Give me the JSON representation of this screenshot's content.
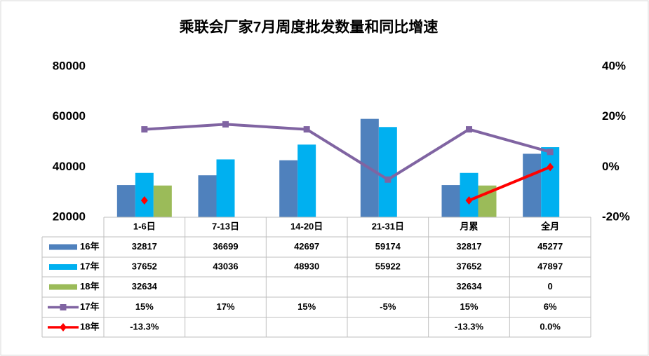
{
  "chart_data": {
    "type": "bar",
    "title": "乘联会厂家7月周度批发数量和同比增速",
    "categories": [
      "1-6日",
      "7-13日",
      "14-20日",
      "21-31日",
      "月累",
      "全月"
    ],
    "series": [
      {
        "name": "16年",
        "type": "bar",
        "color": "#4f81bd",
        "values": [
          32817,
          36699,
          42697,
          59174,
          32817,
          45277
        ]
      },
      {
        "name": "17年",
        "type": "bar",
        "color": "#00b0f0",
        "values": [
          37652,
          43036,
          48930,
          55922,
          37652,
          47897
        ]
      },
      {
        "name": "18年",
        "type": "bar",
        "color": "#9bbb59",
        "values": [
          32634,
          null,
          null,
          null,
          32634,
          0
        ]
      },
      {
        "name": "17年",
        "type": "line",
        "axis": "y2",
        "marker": "square",
        "color": "#8064a2",
        "values": [
          15,
          17,
          15,
          -5,
          15,
          6
        ],
        "value_labels": [
          "15%",
          "17%",
          "15%",
          "-5%",
          "15%",
          "6%"
        ]
      },
      {
        "name": "18年",
        "type": "line",
        "axis": "y2",
        "marker": "diamond",
        "color": "#ff0000",
        "values": [
          -13.3,
          null,
          null,
          null,
          -13.3,
          0
        ],
        "value_labels": [
          "-13.3%",
          null,
          null,
          null,
          "-13.3%",
          "0.0%"
        ]
      }
    ],
    "ylim": [
      20000,
      80000
    ],
    "yticks": [
      20000,
      40000,
      60000,
      80000
    ],
    "y2lim": [
      -20,
      40
    ],
    "y2ticks": [
      {
        "value": -20,
        "label": "-20%"
      },
      {
        "value": 0,
        "label": "0%"
      },
      {
        "value": 20,
        "label": "20%"
      },
      {
        "value": 40,
        "label": "40%"
      }
    ]
  }
}
